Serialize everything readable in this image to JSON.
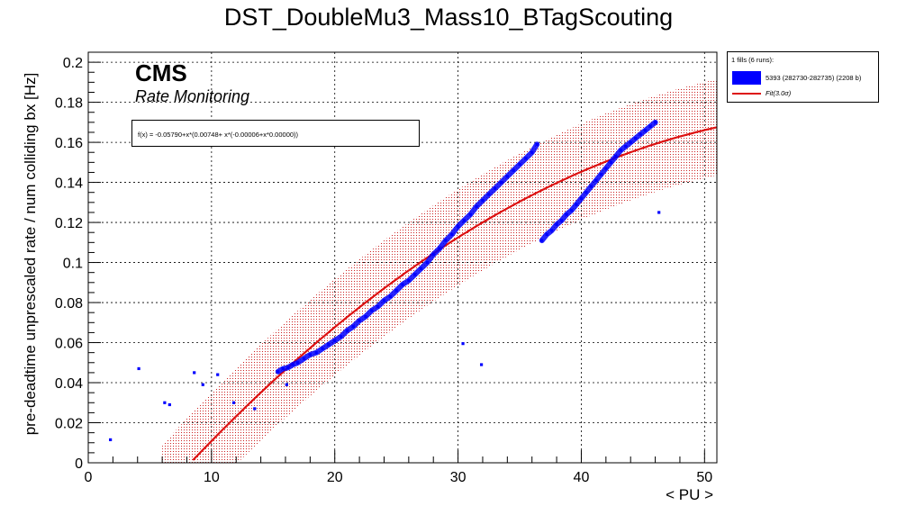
{
  "chart_data": {
    "type": "scatter",
    "title": "DST_DoubleMu3_Mass10_BTagScouting",
    "xlabel": "< PU >",
    "ylabel": "pre-deadtime unprescaled rate / num colliding bx [Hz]",
    "xlim": [
      0,
      51
    ],
    "ylim": [
      0,
      0.205
    ],
    "xticks": [
      0,
      10,
      20,
      30,
      40,
      50
    ],
    "yticks": [
      0,
      0.02,
      0.04,
      0.06,
      0.08,
      0.1,
      0.12,
      0.14,
      0.16,
      0.18,
      0.2
    ],
    "xtick_labels": [
      "0",
      "10",
      "20",
      "30",
      "40",
      "50"
    ],
    "ytick_labels": [
      "0",
      "0.02",
      "0.04",
      "0.06",
      "0.08",
      "0.1",
      "0.12",
      "0.14",
      "0.16",
      "0.18",
      "0.2"
    ],
    "grid": true,
    "legend_position": "outside-top-right",
    "annotations": {
      "experiment": "CMS",
      "subtitle": "Rate Monitoring",
      "fit_formula": "f(x) = -0.05790+x*(0.00748+ x*(-0.00006+x*0.00000))"
    },
    "legend": {
      "header": "1 fills (6 runs):",
      "series_label": "5393 (282730-282735) (2208 b)",
      "fit_label": "Fit(3.0σ)"
    },
    "fit": {
      "coefficients": [
        -0.0579,
        0.00748,
        -6e-05,
        0.0
      ],
      "band_sigma_halfwidth": 0.024,
      "x_range": [
        6,
        51
      ]
    },
    "series": [
      {
        "name": "5393 (282730-282735) (2208 b)",
        "points": [
          [
            1.8,
            0.0115
          ],
          [
            4.1,
            0.047
          ],
          [
            6.2,
            0.03
          ],
          [
            6.6,
            0.029
          ],
          [
            8.6,
            0.045
          ],
          [
            9.3,
            0.039
          ],
          [
            10.5,
            0.044
          ],
          [
            11.8,
            0.03
          ],
          [
            13.5,
            0.027
          ],
          [
            16.1,
            0.039
          ],
          [
            30.4,
            0.0595
          ],
          [
            31.9,
            0.049
          ],
          [
            46.3,
            0.125
          ],
          [
            15.4,
            0.0455
          ],
          [
            15.8,
            0.047
          ],
          [
            16.2,
            0.0475
          ],
          [
            16.6,
            0.049
          ],
          [
            17.0,
            0.05
          ],
          [
            17.5,
            0.052
          ],
          [
            18.0,
            0.054
          ],
          [
            18.5,
            0.055
          ],
          [
            19.0,
            0.057
          ],
          [
            19.5,
            0.059
          ],
          [
            20.0,
            0.061
          ],
          [
            20.5,
            0.063
          ],
          [
            21.0,
            0.066
          ],
          [
            21.5,
            0.068
          ],
          [
            22.0,
            0.071
          ],
          [
            22.5,
            0.073
          ],
          [
            23.0,
            0.076
          ],
          [
            23.5,
            0.078
          ],
          [
            24.0,
            0.081
          ],
          [
            24.5,
            0.083
          ],
          [
            25.0,
            0.086
          ],
          [
            25.5,
            0.089
          ],
          [
            26.0,
            0.091
          ],
          [
            26.5,
            0.094
          ],
          [
            27.0,
            0.097
          ],
          [
            27.5,
            0.1
          ],
          [
            28.0,
            0.104
          ],
          [
            28.5,
            0.107
          ],
          [
            29.0,
            0.111
          ],
          [
            29.5,
            0.114
          ],
          [
            30.0,
            0.118
          ],
          [
            30.5,
            0.121
          ],
          [
            31.0,
            0.124
          ],
          [
            31.5,
            0.128
          ],
          [
            32.0,
            0.131
          ],
          [
            32.5,
            0.134
          ],
          [
            33.0,
            0.137
          ],
          [
            33.5,
            0.14
          ],
          [
            34.0,
            0.143
          ],
          [
            34.5,
            0.146
          ],
          [
            35.0,
            0.149
          ],
          [
            35.5,
            0.152
          ],
          [
            36.0,
            0.155
          ],
          [
            36.4,
            0.159
          ],
          [
            36.8,
            0.111
          ],
          [
            37.2,
            0.114
          ],
          [
            37.6,
            0.116
          ],
          [
            38.0,
            0.119
          ],
          [
            38.4,
            0.121
          ],
          [
            38.8,
            0.124
          ],
          [
            39.2,
            0.126
          ],
          [
            39.6,
            0.129
          ],
          [
            40.0,
            0.132
          ],
          [
            40.4,
            0.135
          ],
          [
            40.8,
            0.138
          ],
          [
            41.2,
            0.141
          ],
          [
            41.6,
            0.144
          ],
          [
            42.0,
            0.147
          ],
          [
            42.4,
            0.15
          ],
          [
            42.8,
            0.153
          ],
          [
            43.2,
            0.156
          ],
          [
            43.6,
            0.158
          ],
          [
            44.0,
            0.16
          ],
          [
            44.4,
            0.162
          ],
          [
            44.8,
            0.164
          ],
          [
            45.2,
            0.166
          ],
          [
            45.6,
            0.168
          ],
          [
            46.0,
            0.17
          ]
        ]
      }
    ]
  },
  "colors": {
    "marker": "#0000ff",
    "fit_line": "#dd1111",
    "band": "#cc2222",
    "grid": "#000000"
  }
}
